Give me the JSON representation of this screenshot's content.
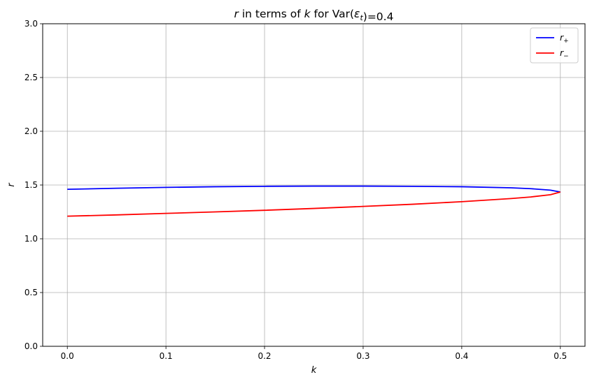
{
  "chart_data": {
    "type": "line",
    "title_parts": [
      {
        "text": "r",
        "italic": true
      },
      {
        "text": " in terms of ",
        "italic": false
      },
      {
        "text": "k",
        "italic": true
      },
      {
        "text": " for Var(",
        "italic": false
      },
      {
        "text": "ε",
        "italic": true
      },
      {
        "text": "t",
        "italic": true,
        "sub": true
      },
      {
        "text": ")=0.4",
        "italic": false
      }
    ],
    "xlabel": "k",
    "ylabel": "r",
    "xlim": [
      -0.025,
      0.525
    ],
    "ylim": [
      0,
      3
    ],
    "xticks": [
      0.0,
      0.1,
      0.2,
      0.3,
      0.4,
      0.5
    ],
    "xtick_labels": [
      "0.0",
      "0.1",
      "0.2",
      "0.3",
      "0.4",
      "0.5"
    ],
    "yticks": [
      0.0,
      0.5,
      1.0,
      1.5,
      2.0,
      2.5,
      3.0
    ],
    "ytick_labels": [
      "0.0",
      "0.5",
      "1.0",
      "1.5",
      "2.0",
      "2.5",
      "3.0"
    ],
    "grid": true,
    "legend_position": "top-right",
    "series": [
      {
        "name": "r+",
        "legend_base": "r",
        "legend_sub": "+",
        "color": "#0000ff",
        "x": [
          0.0,
          0.05,
          0.1,
          0.15,
          0.2,
          0.25,
          0.3,
          0.35,
          0.4,
          0.45,
          0.47,
          0.49,
          0.5
        ],
        "y": [
          1.46,
          1.47,
          1.478,
          1.484,
          1.488,
          1.49,
          1.49,
          1.488,
          1.484,
          1.474,
          1.466,
          1.452,
          1.435
        ]
      },
      {
        "name": "r−",
        "legend_base": "r",
        "legend_sub": "−",
        "color": "#ff0000",
        "x": [
          0.0,
          0.05,
          0.1,
          0.15,
          0.2,
          0.25,
          0.3,
          0.35,
          0.4,
          0.45,
          0.47,
          0.49,
          0.5
        ],
        "y": [
          1.21,
          1.222,
          1.236,
          1.25,
          1.265,
          1.282,
          1.301,
          1.321,
          1.345,
          1.374,
          1.389,
          1.41,
          1.435
        ]
      }
    ]
  }
}
